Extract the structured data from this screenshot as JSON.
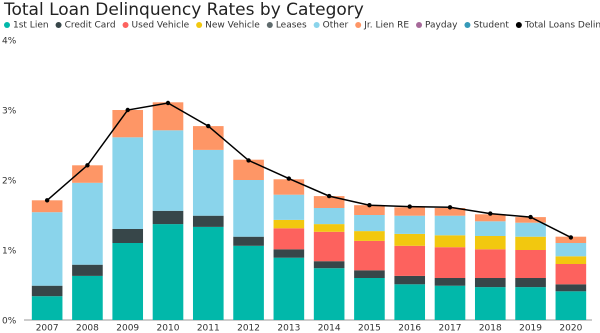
{
  "chart_data": {
    "type": "bar",
    "stacked": true,
    "title": "Total Loan Delinquency Rates by Category",
    "categories": [
      "2007",
      "2008",
      "2009",
      "2010",
      "2011",
      "2012",
      "2013",
      "2014",
      "2015",
      "2016",
      "2017",
      "2018",
      "2019",
      "2020"
    ],
    "series": [
      {
        "name": "1st Lien",
        "color": "#01b8aa",
        "values": [
          0.34,
          0.63,
          1.1,
          1.37,
          1.33,
          1.06,
          0.89,
          0.74,
          0.6,
          0.51,
          0.49,
          0.47,
          0.47,
          0.41
        ]
      },
      {
        "name": "Credit Card",
        "color": "#374649",
        "values": [
          0.15,
          0.16,
          0.2,
          0.19,
          0.16,
          0.13,
          0.12,
          0.1,
          0.11,
          0.12,
          0.11,
          0.13,
          0.13,
          0.1
        ]
      },
      {
        "name": "Used Vehicle",
        "color": "#fd625e",
        "values": [
          0,
          0,
          0,
          0,
          0,
          0,
          0.3,
          0.42,
          0.42,
          0.43,
          0.44,
          0.41,
          0.4,
          0.29
        ]
      },
      {
        "name": "New Vehicle",
        "color": "#f2c80f",
        "values": [
          0,
          0,
          0,
          0,
          0,
          0,
          0.12,
          0.11,
          0.14,
          0.17,
          0.17,
          0.19,
          0.19,
          0.11
        ]
      },
      {
        "name": "Leases",
        "color": "#5f6b6d",
        "values": [
          0,
          0,
          0,
          0,
          0,
          0,
          0,
          0,
          0,
          0,
          0,
          0,
          0,
          0
        ]
      },
      {
        "name": "Other",
        "color": "#8ad4eb",
        "values": [
          1.05,
          1.17,
          1.31,
          1.15,
          0.94,
          0.81,
          0.36,
          0.23,
          0.23,
          0.26,
          0.28,
          0.21,
          0.2,
          0.19
        ]
      },
      {
        "name": "Jr. Lien RE",
        "color": "#fe9666",
        "values": [
          0.17,
          0.25,
          0.39,
          0.4,
          0.34,
          0.29,
          0.22,
          0.17,
          0.14,
          0.12,
          0.11,
          0.1,
          0.08,
          0.09
        ]
      },
      {
        "name": "Payday",
        "color": "#a66999",
        "values": [
          0,
          0,
          0,
          0,
          0,
          0,
          0,
          0,
          0,
          0,
          0,
          0,
          0,
          0
        ]
      },
      {
        "name": "Student",
        "color": "#3599b8",
        "values": [
          0,
          0,
          0,
          0,
          0,
          0,
          0,
          0,
          0,
          0,
          0,
          0,
          0,
          0
        ]
      },
      {
        "name": "Total Loans Delinquent",
        "color": "#000000",
        "type": "line",
        "values": [
          1.71,
          2.21,
          3.0,
          3.1,
          2.77,
          2.28,
          2.02,
          1.77,
          1.64,
          1.62,
          1.61,
          1.52,
          1.47,
          1.18
        ]
      }
    ],
    "ylim": [
      0,
      4
    ],
    "yticks": [
      {
        "value": 0,
        "label": "0%"
      },
      {
        "value": 1,
        "label": "1%"
      },
      {
        "value": 2,
        "label": "2%"
      },
      {
        "value": 3,
        "label": "3%"
      },
      {
        "value": 4,
        "label": "4%"
      }
    ],
    "grid": false
  }
}
